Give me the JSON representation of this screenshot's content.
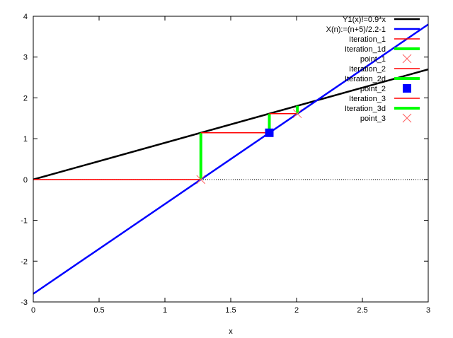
{
  "chart_data": {
    "type": "line",
    "title": "",
    "xlabel": "x",
    "ylabel": "",
    "xlim": [
      0,
      3
    ],
    "ylim": [
      -3,
      4
    ],
    "xticks": [
      "0",
      "0.5",
      "1",
      "1.5",
      "2",
      "2.5",
      "3"
    ],
    "yticks": [
      "-3",
      "-2",
      "-1",
      "0",
      "1",
      "2",
      "3",
      "4"
    ],
    "grid": false,
    "legend_placement": "top-right",
    "zero_axis": "dotted",
    "series": [
      {
        "name": "Y1(x):=0.9*x",
        "kind": "line",
        "color": "#000000",
        "x": [
          0,
          3
        ],
        "y": [
          0,
          2.7
        ]
      },
      {
        "name": "X(n):=(n+5)/2.2-1",
        "kind": "line",
        "color": "#0000ff",
        "x": [
          0,
          3
        ],
        "y": [
          -2.8,
          3.8
        ]
      },
      {
        "name": "Iteration_1",
        "kind": "line",
        "color": "#ff0000",
        "x": [
          0,
          1.273
        ],
        "y": [
          0,
          0
        ]
      },
      {
        "name": "Iteration_1d",
        "kind": "thick",
        "color": "#00ff00",
        "x": [
          1.273,
          1.273
        ],
        "y": [
          0,
          1.145
        ]
      },
      {
        "name": "point_1",
        "kind": "cross",
        "color": "#ff6060",
        "x": [
          1.273
        ],
        "y": [
          0
        ]
      },
      {
        "name": "Iteration_2",
        "kind": "line",
        "color": "#ff0000",
        "x": [
          1.273,
          1.793
        ],
        "y": [
          1.145,
          1.145
        ]
      },
      {
        "name": "Iteration_2d",
        "kind": "thick",
        "color": "#00ff00",
        "x": [
          1.793,
          1.793
        ],
        "y": [
          1.145,
          1.614
        ]
      },
      {
        "name": "point_2",
        "kind": "square",
        "color": "#0000ff",
        "x": [
          1.793
        ],
        "y": [
          1.145
        ]
      },
      {
        "name": "Iteration_3",
        "kind": "line",
        "color": "#ff0000",
        "x": [
          1.793,
          2.006
        ],
        "y": [
          1.614,
          1.614
        ]
      },
      {
        "name": "Iteration_3d",
        "kind": "thick",
        "color": "#00ff00",
        "x": [
          2.006,
          2.006
        ],
        "y": [
          1.614,
          1.806
        ]
      },
      {
        "name": "point_3",
        "kind": "cross",
        "color": "#ff6060",
        "x": [
          2.006
        ],
        "y": [
          1.614
        ]
      }
    ]
  }
}
